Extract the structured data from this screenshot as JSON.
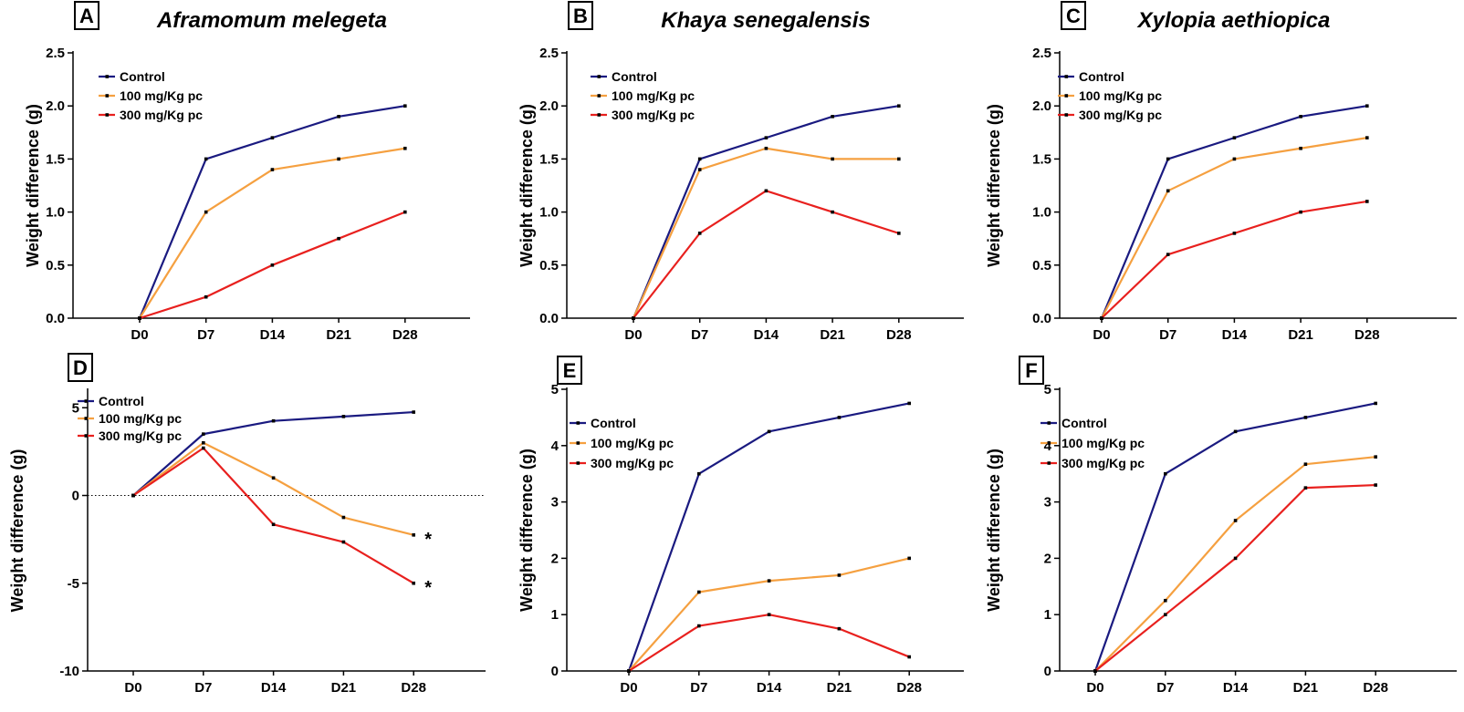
{
  "colors": {
    "control": "#1a1a80",
    "dose100": "#f5a040",
    "dose300": "#e8201e"
  },
  "chart_data": [
    {
      "panel": "A",
      "type": "line",
      "title": "Aframomum melegeta",
      "categories": [
        "D0",
        "D7",
        "D14",
        "D21",
        "D28"
      ],
      "ylabel": "Weight difference (g)",
      "ylim": [
        0,
        2.5
      ],
      "yticks": [
        "0.0",
        "0.5",
        "1.0",
        "1.5",
        "2.0",
        "2.5"
      ],
      "ytick_values": [
        0,
        0.5,
        1.0,
        1.5,
        2.0,
        2.5
      ],
      "legend": "top-left",
      "zero_line": false,
      "series": [
        {
          "name": "Control",
          "values": [
            0,
            1.5,
            1.7,
            1.9,
            2.0
          ]
        },
        {
          "name": "100 mg/Kg pc",
          "values": [
            0,
            1.0,
            1.4,
            1.5,
            1.6
          ]
        },
        {
          "name": "300 mg/Kg pc",
          "values": [
            0,
            0.2,
            0.5,
            0.75,
            1.0
          ]
        }
      ],
      "annotations": []
    },
    {
      "panel": "B",
      "type": "line",
      "title": "Khaya senegalensis",
      "categories": [
        "D0",
        "D7",
        "D14",
        "D21",
        "D28"
      ],
      "ylabel": "Weight difference (g)",
      "ylim": [
        0,
        2.5
      ],
      "yticks": [
        "0.0",
        "0.5",
        "1.0",
        "1.5",
        "2.0",
        "2.5"
      ],
      "ytick_values": [
        0,
        0.5,
        1.0,
        1.5,
        2.0,
        2.5
      ],
      "legend": "top-left",
      "zero_line": false,
      "series": [
        {
          "name": "Control",
          "values": [
            0,
            1.5,
            1.7,
            1.9,
            2.0
          ]
        },
        {
          "name": "100 mg/Kg pc",
          "values": [
            0,
            1.4,
            1.6,
            1.5,
            1.5
          ]
        },
        {
          "name": "300 mg/Kg pc",
          "values": [
            0,
            0.8,
            1.2,
            1.0,
            0.8
          ]
        }
      ],
      "annotations": []
    },
    {
      "panel": "C",
      "type": "line",
      "title": "Xylopia aethiopica",
      "categories": [
        "D0",
        "D7",
        "D14",
        "D21",
        "D28"
      ],
      "ylabel": "Weight difference (g)",
      "ylim": [
        0,
        2.5
      ],
      "yticks": [
        "0.0",
        "0.5",
        "1.0",
        "1.5",
        "2.0",
        "2.5"
      ],
      "ytick_values": [
        0,
        0.5,
        1.0,
        1.5,
        2.0,
        2.5
      ],
      "legend": "top-left",
      "zero_line": false,
      "series": [
        {
          "name": "Control",
          "values": [
            0,
            1.5,
            1.7,
            1.9,
            2.0
          ]
        },
        {
          "name": "100 mg/Kg pc",
          "values": [
            0,
            1.2,
            1.5,
            1.6,
            1.7
          ]
        },
        {
          "name": "300 mg/Kg pc",
          "values": [
            0,
            0.6,
            0.8,
            1.0,
            1.1
          ]
        }
      ],
      "annotations": []
    },
    {
      "panel": "D",
      "type": "line",
      "title": "",
      "categories": [
        "D0",
        "D7",
        "D14",
        "D21",
        "D28"
      ],
      "ylabel": "Weight difference (g)",
      "ylim": [
        -10,
        6
      ],
      "yticks": [
        "-10",
        "-5",
        "0",
        "5"
      ],
      "ytick_values": [
        -10,
        -5,
        0,
        5
      ],
      "legend": "top-left",
      "zero_line": true,
      "series": [
        {
          "name": "Control",
          "values": [
            0,
            3.5,
            4.25,
            4.5,
            4.75
          ]
        },
        {
          "name": "100 mg/Kg pc",
          "values": [
            0,
            3.0,
            1.0,
            -1.25,
            -2.25
          ]
        },
        {
          "name": "300 mg/Kg pc",
          "values": [
            0,
            2.7,
            -1.65,
            -2.65,
            -5.0
          ]
        }
      ],
      "annotations": [
        {
          "text": "*",
          "x": "D28",
          "y": -2.25,
          "series": "100 mg/Kg pc"
        },
        {
          "text": "*",
          "x": "D28",
          "y": -5.0,
          "series": "300 mg/Kg pc"
        }
      ]
    },
    {
      "panel": "E",
      "type": "line",
      "title": "",
      "categories": [
        "D0",
        "D7",
        "D14",
        "D21",
        "D28"
      ],
      "ylabel": "Weight difference (g)",
      "ylim": [
        0,
        5
      ],
      "yticks": [
        "0",
        "1",
        "2",
        "3",
        "4",
        "5"
      ],
      "ytick_values": [
        0,
        1,
        2,
        3,
        4,
        5
      ],
      "legend": "top-left",
      "zero_line": true,
      "series": [
        {
          "name": "Control",
          "values": [
            0,
            3.5,
            4.25,
            4.5,
            4.75
          ]
        },
        {
          "name": "100 mg/Kg pc",
          "values": [
            0,
            1.4,
            1.6,
            1.7,
            2.0
          ]
        },
        {
          "name": "300 mg/Kg pc",
          "values": [
            0,
            0.8,
            1.0,
            0.75,
            0.25
          ]
        }
      ],
      "annotations": []
    },
    {
      "panel": "F",
      "type": "line",
      "title": "",
      "categories": [
        "D0",
        "D7",
        "D14",
        "D21",
        "D28"
      ],
      "ylabel": "Weight difference (g)",
      "ylim": [
        0,
        5
      ],
      "yticks": [
        "0",
        "1",
        "2",
        "3",
        "4",
        "5"
      ],
      "ytick_values": [
        0,
        1,
        2,
        3,
        4,
        5
      ],
      "legend": "top-left",
      "zero_line": true,
      "series": [
        {
          "name": "Control",
          "values": [
            0,
            3.5,
            4.25,
            4.5,
            4.75
          ]
        },
        {
          "name": "100 mg/Kg pc",
          "values": [
            0,
            1.25,
            2.67,
            3.67,
            3.8
          ]
        },
        {
          "name": "300 mg/Kg pc",
          "values": [
            0,
            1.0,
            2.0,
            3.25,
            3.3
          ]
        }
      ],
      "annotations": []
    }
  ]
}
